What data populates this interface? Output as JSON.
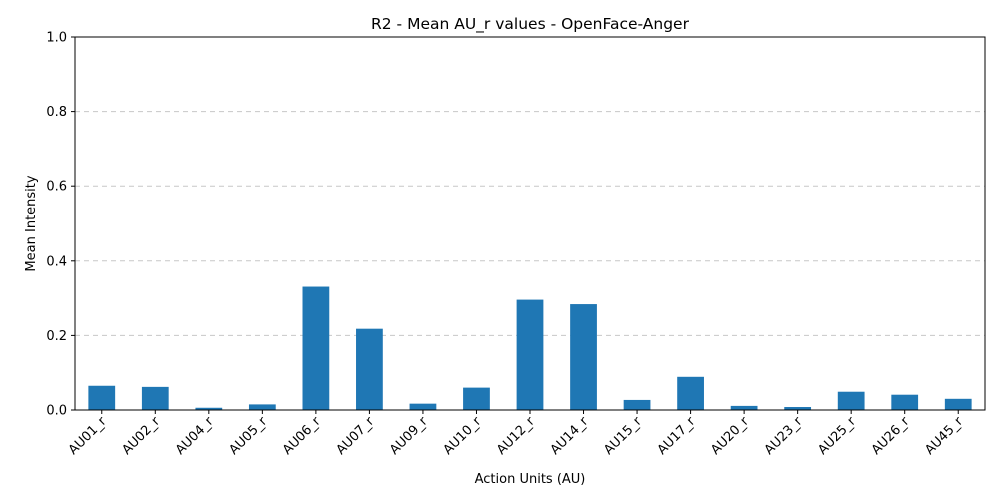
{
  "chart_data": {
    "type": "bar",
    "title": "R2 - Mean AU_r values - OpenFace-Anger",
    "xlabel": "Action Units (AU)",
    "ylabel": "Mean Intensity",
    "ylim": [
      0,
      1.0
    ],
    "yticks": [
      0.0,
      0.2,
      0.4,
      0.6,
      0.8,
      1.0
    ],
    "ytick_labels": [
      "0.0",
      "0.2",
      "0.4",
      "0.6",
      "0.8",
      "1.0"
    ],
    "grid": "y-dashed",
    "categories": [
      "AU01_r",
      "AU02_r",
      "AU04_r",
      "AU05_r",
      "AU06_r",
      "AU07_r",
      "AU09_r",
      "AU10_r",
      "AU12_r",
      "AU14_r",
      "AU15_r",
      "AU17_r",
      "AU20_r",
      "AU23_r",
      "AU25_r",
      "AU26_r",
      "AU45_r"
    ],
    "values": [
      0.065,
      0.062,
      0.006,
      0.015,
      0.331,
      0.218,
      0.017,
      0.06,
      0.296,
      0.284,
      0.027,
      0.089,
      0.011,
      0.008,
      0.049,
      0.041,
      0.03
    ],
    "bar_color": "#1f77b4"
  }
}
